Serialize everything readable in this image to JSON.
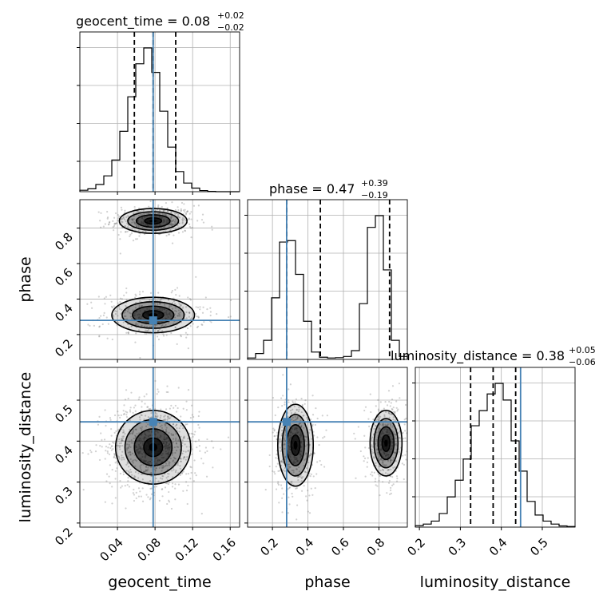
{
  "chart_data": {
    "type": "corner",
    "parameters": [
      {
        "name": "geocent_time",
        "label": "geocent_time",
        "range": [
          0.0,
          0.17
        ],
        "ticks": [
          0.04,
          0.08,
          0.12,
          0.16
        ],
        "tick_labels": [
          "0.04",
          "0.08",
          "0.12",
          "0.16"
        ],
        "median": 0.08,
        "quantiles": [
          0.058,
          0.078,
          0.102
        ],
        "title_main": "geocent_time = 0.08",
        "title_plus": "+0.02",
        "title_minus": "−0.02",
        "injection": 0.078,
        "hist_bins": [
          0.0,
          0.0085,
          0.017,
          0.0255,
          0.034,
          0.0425,
          0.051,
          0.0595,
          0.068,
          0.0765,
          0.085,
          0.0935,
          0.102,
          0.1105,
          0.119,
          0.1275,
          0.136,
          0.1445,
          0.153,
          0.1615,
          0.17
        ],
        "hist_counts": [
          0.01,
          0.02,
          0.05,
          0.11,
          0.22,
          0.42,
          0.66,
          0.89,
          1.0,
          0.83,
          0.56,
          0.31,
          0.14,
          0.06,
          0.025,
          0.008,
          0.002,
          0.0,
          0.0,
          0.0
        ]
      },
      {
        "name": "phase",
        "label": "phase",
        "range": [
          0.06,
          0.96
        ],
        "ticks": [
          0.2,
          0.4,
          0.6,
          0.8
        ],
        "tick_labels": [
          "0.2",
          "0.4",
          "0.6",
          "0.8"
        ],
        "median": 0.47,
        "quantiles": [
          0.28,
          0.47,
          0.86
        ],
        "title_main": "phase = 0.47",
        "title_plus": "+0.39",
        "title_minus": "−0.19",
        "injection": 0.28,
        "hist_bins": [
          0.06,
          0.105,
          0.15,
          0.195,
          0.24,
          0.285,
          0.33,
          0.375,
          0.42,
          0.465,
          0.51,
          0.555,
          0.6,
          0.645,
          0.69,
          0.735,
          0.78,
          0.825,
          0.87,
          0.915,
          0.96
        ],
        "hist_counts": [
          0.01,
          0.04,
          0.13,
          0.42,
          0.8,
          0.81,
          0.58,
          0.26,
          0.05,
          0.015,
          0.01,
          0.012,
          0.02,
          0.06,
          0.38,
          0.9,
          0.98,
          0.61,
          0.13,
          0.02
        ]
      },
      {
        "name": "luminosity_distance",
        "label": "luminosity_distance",
        "range": [
          0.19,
          0.58
        ],
        "ticks": [
          0.2,
          0.3,
          0.4,
          0.5
        ],
        "tick_labels": [
          "0.2",
          "0.3",
          "0.4",
          "0.5"
        ],
        "median": 0.38,
        "quantiles": [
          0.325,
          0.38,
          0.435
        ],
        "title_main": "luminosity_distance = 0.38",
        "title_plus": "+0.05",
        "title_minus": "−0.06",
        "injection": 0.447,
        "hist_bins": [
          0.19,
          0.2095,
          0.229,
          0.2485,
          0.268,
          0.2875,
          0.307,
          0.3265,
          0.346,
          0.3655,
          0.385,
          0.4045,
          0.424,
          0.4435,
          0.463,
          0.4825,
          0.502,
          0.5215,
          0.541,
          0.5605,
          0.58
        ],
        "hist_counts": [
          0.01,
          0.02,
          0.04,
          0.09,
          0.2,
          0.31,
          0.45,
          0.67,
          0.77,
          0.88,
          0.95,
          0.84,
          0.57,
          0.37,
          0.17,
          0.08,
          0.04,
          0.02,
          0.008,
          0.004
        ]
      }
    ],
    "modes_2d": [
      {
        "x": "geocent_time",
        "y": "phase",
        "components": [
          {
            "mx": 0.078,
            "my": 0.84,
            "sx": 0.018,
            "sy": 0.035,
            "w": 0.5
          },
          {
            "mx": 0.078,
            "my": 0.31,
            "sx": 0.022,
            "sy": 0.05,
            "w": 0.5
          }
        ]
      },
      {
        "x": "geocent_time",
        "y": "luminosity_distance",
        "components": [
          {
            "mx": 0.078,
            "my": 0.385,
            "sx": 0.02,
            "sy": 0.045,
            "w": 1.0
          }
        ]
      },
      {
        "x": "phase",
        "y": "luminosity_distance",
        "components": [
          {
            "mx": 0.33,
            "my": 0.39,
            "sx": 0.05,
            "sy": 0.05,
            "w": 0.5
          },
          {
            "mx": 0.84,
            "my": 0.395,
            "sx": 0.045,
            "sy": 0.04,
            "w": 0.5
          }
        ]
      }
    ],
    "contour_levels_sigma": [
      0.5,
      1.0,
      1.5,
      2.0
    ],
    "grid": true,
    "truth_color": "#4682b4",
    "hist_color": "#000000",
    "density_color": "#000000"
  }
}
